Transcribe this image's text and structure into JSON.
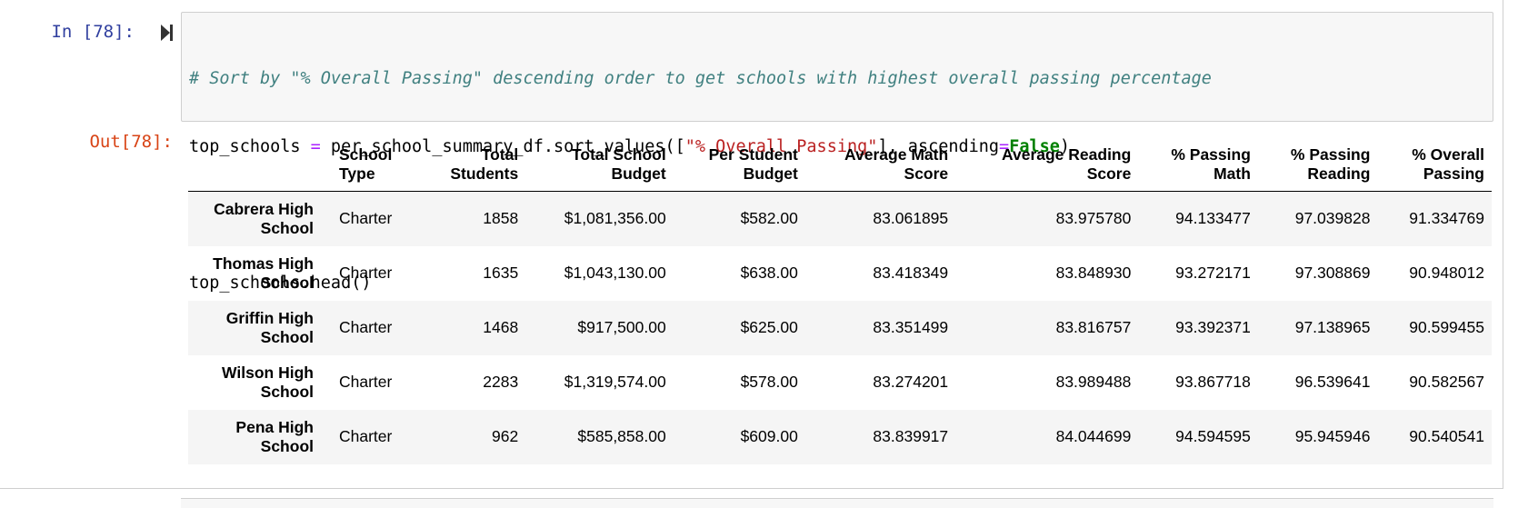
{
  "input_prompt": "In [78]:",
  "output_prompt": "Out[78]:",
  "code": {
    "comment": "# Sort by \"% Overall Passing\" descending order to get schools with highest overall passing percentage",
    "line2_var": "top_schools ",
    "line2_eq": "=",
    "line2_call": " per_school_summary_df.sort_values([",
    "line2_str": "\"% Overall Passing\"",
    "line2_mid": "], ascending",
    "line2_eq2": "=",
    "line2_false": "False",
    "line2_end": ")",
    "line4": "top_schools.head()"
  },
  "table": {
    "headers": [
      [
        "School",
        "Type"
      ],
      [
        "Total",
        "Students"
      ],
      [
        "Total School",
        "Budget"
      ],
      [
        "Per Student",
        "Budget"
      ],
      [
        "Average Math",
        "Score"
      ],
      [
        "Average Reading",
        "Score"
      ],
      [
        "% Passing",
        "Math"
      ],
      [
        "% Passing",
        "Reading"
      ],
      [
        "% Overall",
        "Passing"
      ]
    ],
    "rows": [
      {
        "name": [
          "Cabrera High",
          "School"
        ],
        "cells": [
          "Charter",
          "1858",
          "$1,081,356.00",
          "$582.00",
          "83.061895",
          "83.975780",
          "94.133477",
          "97.039828",
          "91.334769"
        ]
      },
      {
        "name": [
          "Thomas High",
          "School"
        ],
        "cells": [
          "Charter",
          "1635",
          "$1,043,130.00",
          "$638.00",
          "83.418349",
          "83.848930",
          "93.272171",
          "97.308869",
          "90.948012"
        ]
      },
      {
        "name": [
          "Griffin High",
          "School"
        ],
        "cells": [
          "Charter",
          "1468",
          "$917,500.00",
          "$625.00",
          "83.351499",
          "83.816757",
          "93.392371",
          "97.138965",
          "90.599455"
        ]
      },
      {
        "name": [
          "Wilson High",
          "School"
        ],
        "cells": [
          "Charter",
          "2283",
          "$1,319,574.00",
          "$578.00",
          "83.274201",
          "83.989488",
          "93.867718",
          "96.539641",
          "90.582567"
        ]
      },
      {
        "name": [
          "Pena High",
          "School"
        ],
        "cells": [
          "Charter",
          "962",
          "$585,858.00",
          "$609.00",
          "83.839917",
          "84.044699",
          "94.594595",
          "95.945946",
          "90.540541"
        ]
      }
    ]
  },
  "icons": {
    "run": "run-cell-icon"
  },
  "colors": {
    "input_prompt": "#303f9f",
    "output_prompt": "#d84315",
    "comment": "#408080",
    "string": "#ba2121",
    "keyword": "#008000",
    "operator": "#aa22ff"
  }
}
